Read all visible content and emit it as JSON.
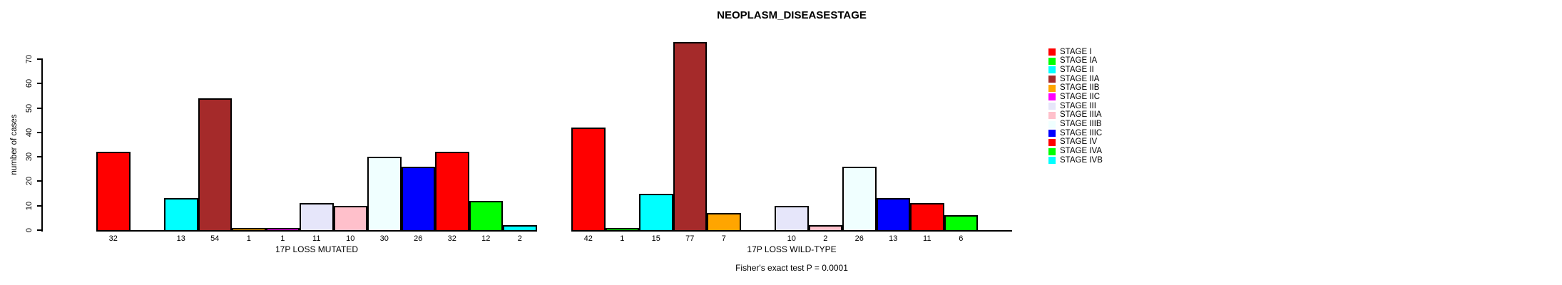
{
  "title": "NEOPLASM_DISEASESTAGE",
  "y_axis": {
    "label": "number of cases",
    "ticks": [
      0,
      10,
      20,
      30,
      40,
      50,
      60,
      70
    ]
  },
  "legend_items": [
    {
      "label": "STAGE I",
      "color": "#FF0000"
    },
    {
      "label": "STAGE IA",
      "color": "#00FF00"
    },
    {
      "label": "STAGE II",
      "color": "#00FFFF"
    },
    {
      "label": "STAGE IIA",
      "color": "#A52A2A"
    },
    {
      "label": "STAGE IIB",
      "color": "#FFA500"
    },
    {
      "label": "STAGE IIC",
      "color": "#FF00FF"
    },
    {
      "label": "STAGE III",
      "color": "#E6E6FA"
    },
    {
      "label": "STAGE IIIA",
      "color": "#FFC0CB"
    },
    {
      "label": "STAGE IIIB",
      "color": "#F0FFFF"
    },
    {
      "label": "STAGE IIIC",
      "color": "#0000FF"
    },
    {
      "label": "STAGE IV",
      "color": "#FF0000"
    },
    {
      "label": "STAGE IVA",
      "color": "#00FF00"
    },
    {
      "label": "STAGE IVB",
      "color": "#00FFFF"
    }
  ],
  "chart_data": [
    {
      "type": "bar",
      "xlabel": "17P LOSS MUTATED",
      "categories": [
        "STAGE I",
        "STAGE IA",
        "STAGE II",
        "STAGE IIA",
        "STAGE IIB",
        "STAGE IIC",
        "STAGE III",
        "STAGE IIIA",
        "STAGE IIIB",
        "STAGE IIIC",
        "STAGE IV",
        "STAGE IVA",
        "STAGE IVB"
      ],
      "values": [
        32,
        0,
        13,
        54,
        1,
        1,
        11,
        10,
        30,
        26,
        32,
        12,
        2
      ],
      "ylim": [
        0,
        70
      ],
      "grid": false,
      "note": "zero-value bars drawn as empty slots with no value label"
    },
    {
      "type": "bar",
      "xlabel": "17P LOSS WILD-TYPE",
      "categories": [
        "STAGE I",
        "STAGE IA",
        "STAGE II",
        "STAGE IIA",
        "STAGE IIB",
        "STAGE IIC",
        "STAGE III",
        "STAGE IIIA",
        "STAGE IIIB",
        "STAGE IIIC",
        "STAGE IV",
        "STAGE IVA",
        "STAGE IVB"
      ],
      "values": [
        42,
        1,
        15,
        77,
        7,
        0,
        10,
        2,
        26,
        13,
        11,
        6,
        0
      ],
      "ylim": [
        0,
        70
      ],
      "grid": false,
      "note": "zero-value bars drawn as empty slots with no value label"
    }
  ],
  "annotation": "Fisher's exact test P = 0.0001",
  "colors": {
    "background": "#FFFFFF",
    "axis": "#000000",
    "bar_border": "#000000",
    "text": "#000000"
  }
}
